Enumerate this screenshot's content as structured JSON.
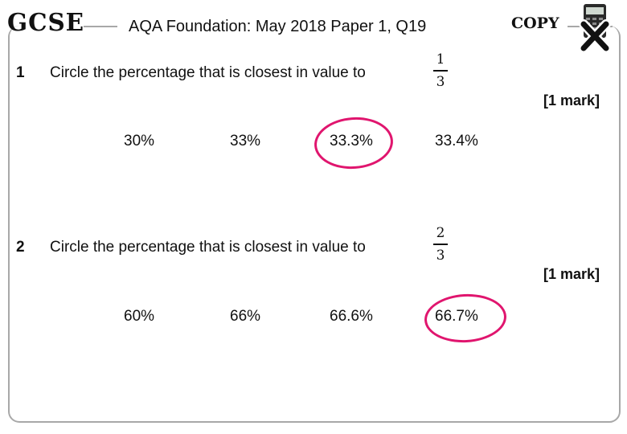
{
  "header": {
    "logo_text": "GCSE",
    "title": "AQA Foundation: May 2018 Paper 1, Q19",
    "copy_text": "COPY",
    "calculator_icon": "calculator-crossed-icon"
  },
  "questions": [
    {
      "number": "1",
      "text": "Circle the percentage that is closest in value to",
      "fraction": {
        "numerator": "1",
        "denominator": "3"
      },
      "marks": "[1 mark]",
      "options": [
        "30%",
        "33%",
        "33.3%",
        "33.4%"
      ],
      "circled_option": "33.3%"
    },
    {
      "number": "2",
      "text": "Circle the percentage that is closest in value to",
      "fraction": {
        "numerator": "2",
        "denominator": "3"
      },
      "marks": "[1 mark]",
      "options": [
        "60%",
        "66%",
        "66.6%",
        "66.7%"
      ],
      "circled_option": "66.7%"
    }
  ],
  "colors": {
    "circle": "#e0156e",
    "frame": "#a8a8a8"
  }
}
